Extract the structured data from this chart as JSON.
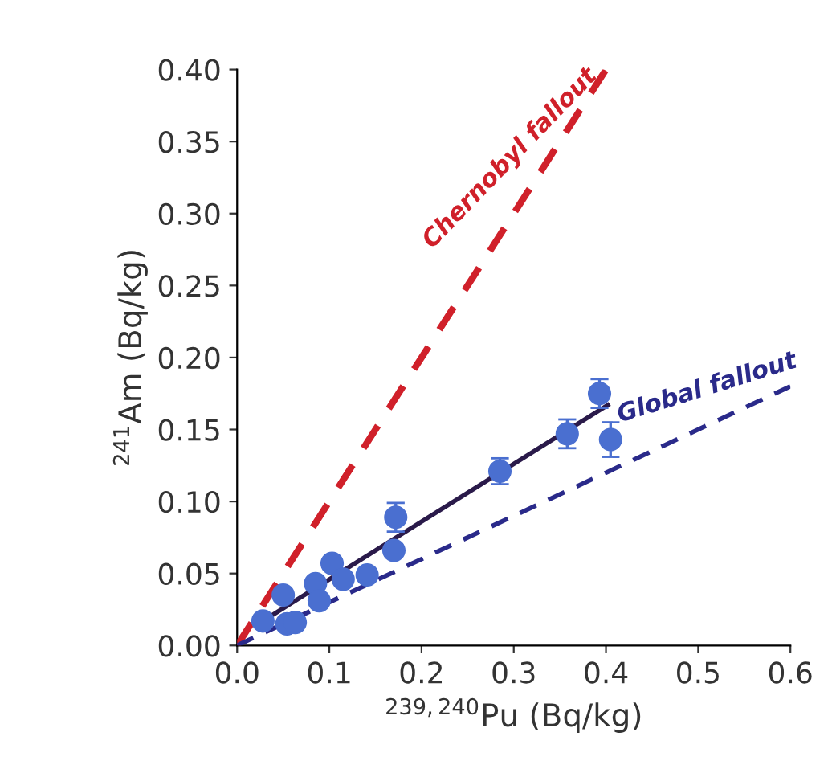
{
  "chart_data": {
    "type": "scatter",
    "xlabel": "$^{239,240}$Pu (Bq/kg)",
    "ylabel": "$^{241}$Am (Bq/kg)",
    "xlim": [
      0,
      0.6
    ],
    "ylim": [
      0,
      0.4
    ],
    "xticks": [
      {
        "value": 0,
        "label": "0.0"
      },
      0.1,
      0.2,
      0.3,
      0.4,
      0.5,
      0.6
    ],
    "yticks": [
      {
        "value": 0,
        "label": "0.00"
      },
      0.05,
      {
        "value": 0.1,
        "label": "0.10"
      },
      0.15,
      {
        "value": 0.2,
        "label": "0.20"
      },
      0.25,
      {
        "value": 0.3,
        "label": "0.30"
      },
      0.35,
      {
        "value": 0.4,
        "label": "0.40"
      }
    ],
    "grid": false,
    "legend": false,
    "series": [
      {
        "name": "Chernobyl fallout",
        "type": "line",
        "line_style": "dashed",
        "color": "#d0202a",
        "x": [
          0,
          0.4
        ],
        "values": [
          0,
          0.4
        ]
      },
      {
        "name": "Global fallout",
        "type": "line",
        "line_style": "dashed",
        "color": "#2a2a8a",
        "x": [
          0,
          0.6
        ],
        "values": [
          0,
          0.18
        ]
      },
      {
        "marker": "circle",
        "color": "#4a6fd0",
        "x": [
          0.028,
          0.054,
          0.05,
          0.063,
          0.085,
          0.089,
          0.103,
          0.115,
          0.141,
          0.172,
          0.17,
          0.285,
          0.358,
          0.393,
          0.405
        ],
        "values": [
          0.017,
          0.015,
          0.035,
          0.016,
          0.043,
          0.031,
          0.057,
          0.046,
          0.049,
          0.089,
          0.066,
          0.121,
          0.147,
          0.175,
          0.143
        ],
        "errors": [
          null,
          null,
          null,
          null,
          null,
          null,
          null,
          null,
          null,
          0.01,
          null,
          0.009,
          0.01,
          0.01,
          0.012
        ]
      },
      {
        "type": "line",
        "line_style": "solid",
        "color": "#2a1a4a",
        "x": [
          0.028,
          0.402
        ],
        "values": [
          0.017,
          0.167
        ]
      }
    ]
  }
}
